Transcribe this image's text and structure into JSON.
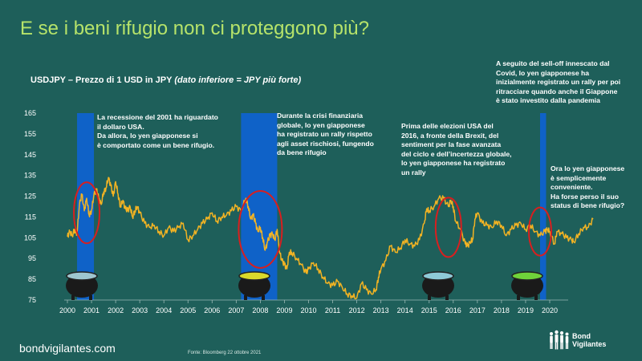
{
  "slide": {
    "title": "E se i beni rifugio non ci proteggono più?",
    "subtitle_main": "USDJPY – Prezzo di 1 USD in JPY ",
    "subtitle_note": "(dato inferiore = JPY più forte)",
    "footer_site": "bondvigilantes.com",
    "footer_source": "Fonte: Bloomberg 22 ottobre 2021",
    "logo_line1": "Bond",
    "logo_line2": "Vigilantes"
  },
  "annotations": {
    "a1_lines": [
      "La recessione del 2001 ha riguardato",
      "il dollaro USA.",
      "Da allora, lo yen giapponese si",
      "è comportato come un bene rifugio."
    ],
    "a2_lines": [
      "Durante la crisi finanziaria",
      "globale, lo yen giapponese",
      "ha registrato un rally rispetto",
      "agli asset rischiosi, fungendo",
      "da bene rifugio"
    ],
    "a3_lines": [
      "Prima delle elezioni USA del",
      "2016, a fronte della Brexit, del",
      "sentiment per la fase avanzata",
      "del ciclo e dell’incertezza globale,",
      "lo yen giapponese ha registrato",
      "un rally"
    ],
    "a4_lines": [
      "A seguito del sell-off innescato dal",
      "Covid, lo yen giapponese ha",
      "inizialmente registrato un rally per poi",
      "ritracciare quando anche il Giappone",
      "è stato investito dalla pandemia"
    ],
    "a5_lines": [
      "Ora lo yen giapponese",
      "è semplicemente",
      "conveniente.",
      "Ha forse perso il suo",
      "status di bene rifugio?"
    ]
  },
  "colors": {
    "background": "#1e5f5a",
    "title": "#b6e36a",
    "line": "#f2b323",
    "recession_band": "#0f62c8",
    "circle": "#d81f1f",
    "cauldron_potions": [
      "#9ec6cf",
      "#d9d92c",
      "#8ec9d6",
      "#6fd33a"
    ]
  },
  "chart_data": {
    "type": "line",
    "series_name": "USDJPY",
    "x_ticks": [
      "2000",
      "2001",
      "2002",
      "2003",
      "2004",
      "2005",
      "2006",
      "2007",
      "2008",
      "2009",
      "2010",
      "2011",
      "2012",
      "2013",
      "2014",
      "2015",
      "2016",
      "2017",
      "2018",
      "2019",
      "2020"
    ],
    "y_ticks": [
      75,
      85,
      95,
      105,
      115,
      125,
      135,
      145,
      155,
      165
    ],
    "ylim": [
      75,
      165
    ],
    "xlim": [
      2000.0,
      2021.0
    ],
    "shaded_periods": [
      [
        2000.4,
        2001.1
      ],
      [
        2007.2,
        2008.7
      ],
      [
        2019.6,
        2019.85
      ]
    ],
    "highlight_circles": [
      [
        2000.8,
        117
      ],
      [
        2008.0,
        109
      ],
      [
        2015.8,
        110
      ],
      [
        2019.6,
        108
      ]
    ],
    "points": [
      [
        2000.0,
        105.5
      ],
      [
        2000.1,
        108
      ],
      [
        2000.2,
        106
      ],
      [
        2000.3,
        109
      ],
      [
        2000.4,
        107
      ],
      [
        2000.5,
        121
      ],
      [
        2000.6,
        126
      ],
      [
        2000.7,
        118
      ],
      [
        2000.8,
        124
      ],
      [
        2000.9,
        116
      ],
      [
        2001.0,
        118
      ],
      [
        2001.1,
        126
      ],
      [
        2001.2,
        128
      ],
      [
        2001.3,
        124
      ],
      [
        2001.4,
        121
      ],
      [
        2001.5,
        127
      ],
      [
        2001.6,
        129
      ],
      [
        2001.7,
        134
      ],
      [
        2001.8,
        130
      ],
      [
        2001.9,
        125
      ],
      [
        2002.0,
        132
      ],
      [
        2002.1,
        126
      ],
      [
        2002.2,
        120
      ],
      [
        2002.3,
        123
      ],
      [
        2002.4,
        119
      ],
      [
        2002.5,
        118
      ],
      [
        2002.6,
        120
      ],
      [
        2002.7,
        115
      ],
      [
        2002.8,
        118
      ],
      [
        2002.9,
        120
      ],
      [
        2003.0,
        117
      ],
      [
        2003.2,
        112
      ],
      [
        2003.4,
        110
      ],
      [
        2003.6,
        111
      ],
      [
        2003.8,
        108
      ],
      [
        2004.0,
        106
      ],
      [
        2004.2,
        110
      ],
      [
        2004.4,
        108
      ],
      [
        2004.6,
        110
      ],
      [
        2004.8,
        112
      ],
      [
        2005.0,
        104
      ],
      [
        2005.2,
        106
      ],
      [
        2005.4,
        109
      ],
      [
        2005.6,
        112
      ],
      [
        2005.8,
        114
      ],
      [
        2006.0,
        117
      ],
      [
        2006.2,
        113
      ],
      [
        2006.4,
        115
      ],
      [
        2006.6,
        116
      ],
      [
        2006.8,
        118
      ],
      [
        2007.0,
        120
      ],
      [
        2007.2,
        118
      ],
      [
        2007.4,
        124
      ],
      [
        2007.5,
        120
      ],
      [
        2007.6,
        114
      ],
      [
        2007.7,
        116
      ],
      [
        2007.8,
        112
      ],
      [
        2007.9,
        108
      ],
      [
        2008.0,
        110
      ],
      [
        2008.1,
        105
      ],
      [
        2008.2,
        99
      ],
      [
        2008.3,
        103
      ],
      [
        2008.4,
        106
      ],
      [
        2008.5,
        107
      ],
      [
        2008.6,
        104
      ],
      [
        2008.7,
        109
      ],
      [
        2008.8,
        98
      ],
      [
        2008.9,
        94
      ],
      [
        2009.0,
        92
      ],
      [
        2009.1,
        90
      ],
      [
        2009.2,
        98
      ],
      [
        2009.3,
        98
      ],
      [
        2009.5,
        95
      ],
      [
        2009.7,
        92
      ],
      [
        2009.9,
        88
      ],
      [
        2010.0,
        90
      ],
      [
        2010.2,
        93
      ],
      [
        2010.4,
        90
      ],
      [
        2010.6,
        86
      ],
      [
        2010.8,
        83
      ],
      [
        2011.0,
        82
      ],
      [
        2011.2,
        84
      ],
      [
        2011.4,
        81
      ],
      [
        2011.6,
        78
      ],
      [
        2011.8,
        77
      ],
      [
        2012.0,
        76
      ],
      [
        2012.2,
        83
      ],
      [
        2012.4,
        80
      ],
      [
        2012.6,
        78
      ],
      [
        2012.8,
        80
      ],
      [
        2012.9,
        86
      ],
      [
        2013.0,
        90
      ],
      [
        2013.2,
        94
      ],
      [
        2013.4,
        101
      ],
      [
        2013.6,
        98
      ],
      [
        2013.8,
        100
      ],
      [
        2014.0,
        104
      ],
      [
        2014.2,
        102
      ],
      [
        2014.4,
        101
      ],
      [
        2014.6,
        104
      ],
      [
        2014.8,
        112
      ],
      [
        2014.9,
        119
      ],
      [
        2015.0,
        118
      ],
      [
        2015.2,
        120
      ],
      [
        2015.4,
        124
      ],
      [
        2015.6,
        124
      ],
      [
        2015.8,
        120
      ],
      [
        2015.9,
        123
      ],
      [
        2016.0,
        120
      ],
      [
        2016.1,
        113
      ],
      [
        2016.3,
        109
      ],
      [
        2016.5,
        102
      ],
      [
        2016.6,
        101
      ],
      [
        2016.7,
        103
      ],
      [
        2016.8,
        104
      ],
      [
        2016.9,
        114
      ],
      [
        2017.0,
        117
      ],
      [
        2017.2,
        112
      ],
      [
        2017.4,
        111
      ],
      [
        2017.6,
        110
      ],
      [
        2017.8,
        113
      ],
      [
        2018.0,
        111
      ],
      [
        2018.2,
        106
      ],
      [
        2018.4,
        109
      ],
      [
        2018.6,
        111
      ],
      [
        2018.8,
        112
      ],
      [
        2019.0,
        109
      ],
      [
        2019.2,
        111
      ],
      [
        2019.4,
        108
      ],
      [
        2019.6,
        106
      ],
      [
        2019.8,
        108
      ],
      [
        2019.9,
        109
      ],
      [
        2020.0,
        108
      ],
      [
        2020.2,
        102
      ],
      [
        2020.3,
        108
      ],
      [
        2020.5,
        107
      ],
      [
        2020.7,
        105
      ],
      [
        2020.9,
        104
      ],
      [
        2021.0,
        103
      ],
      [
        2021.2,
        107
      ],
      [
        2021.4,
        110
      ],
      [
        2021.6,
        110
      ],
      [
        2021.8,
        114
      ]
    ]
  }
}
